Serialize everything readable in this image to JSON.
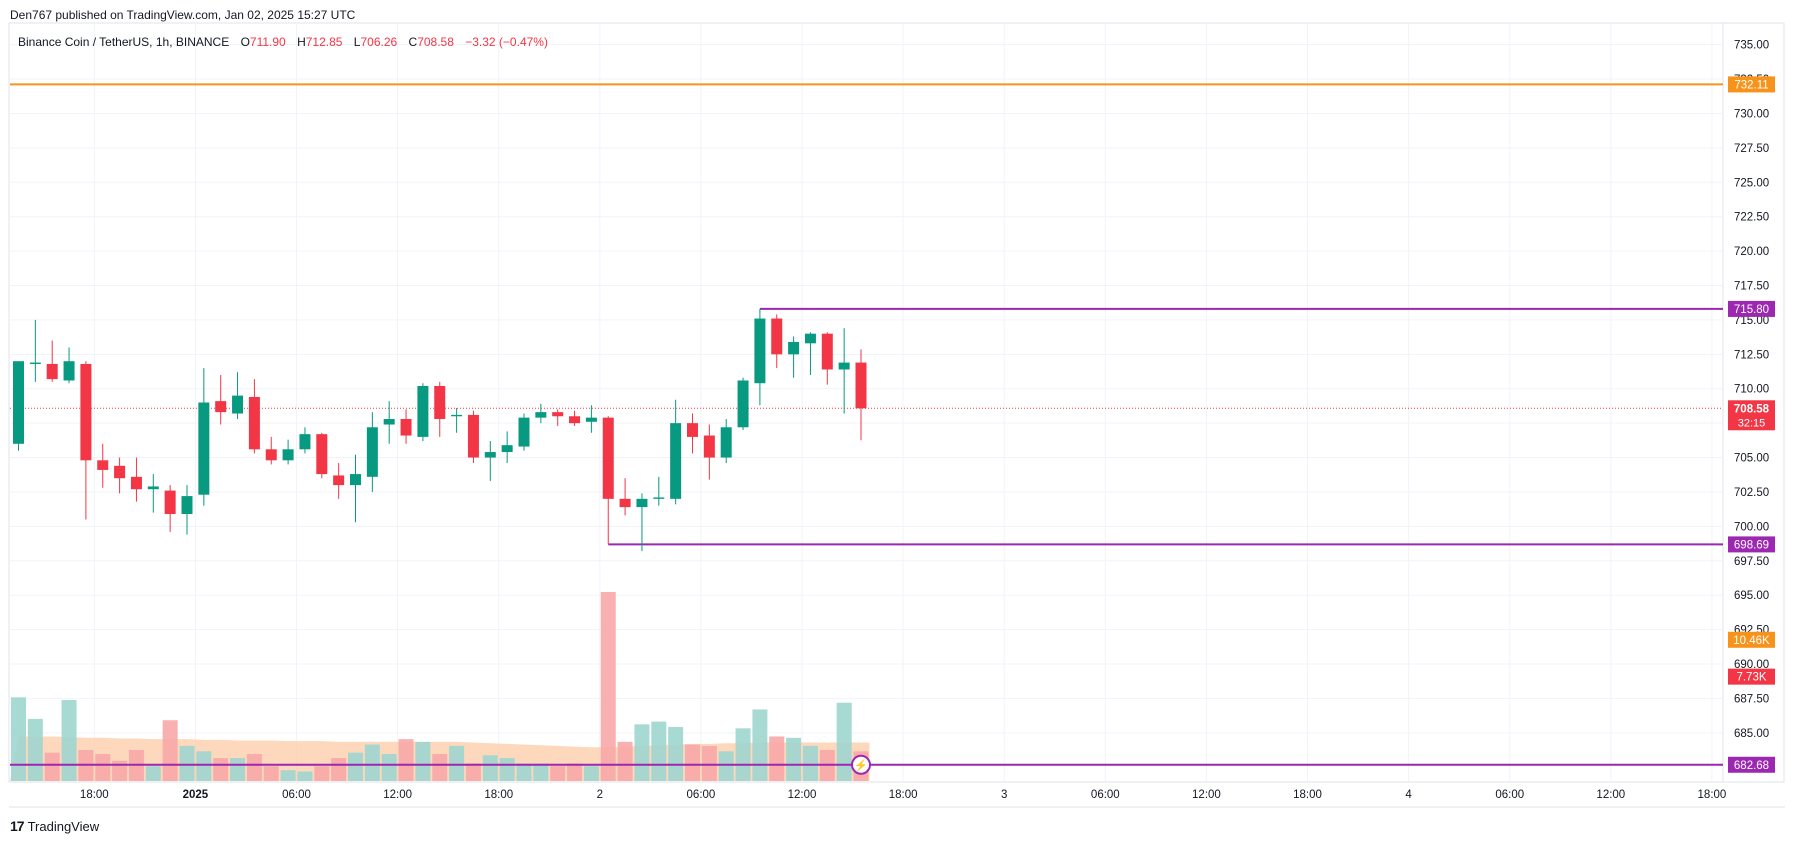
{
  "header": {
    "credit": "Den767 published on TradingView.com, Jan 02, 2025 15:27 UTC"
  },
  "legend": {
    "symbol": "Binance Coin / TetherUS, 1h, BINANCE",
    "open_label": "O",
    "open": "711.90",
    "high_label": "H",
    "high": "712.85",
    "low_label": "L",
    "low": "706.26",
    "close_label": "C",
    "close": "708.58",
    "change": "−3.32 (−0.47%)"
  },
  "footer": {
    "brand": "TradingView",
    "brand_mark": "17"
  },
  "colors": {
    "up": "#089981",
    "down": "#f23645",
    "vol_up": "#9fd6cf",
    "vol_down": "#f7a9a7",
    "orange_line": "#f7931a",
    "purple_line": "#9c27b0",
    "vol_ma_fill": "#fccba6",
    "grid": "#f0f3fa",
    "axis_text": "#131722"
  },
  "chart_data": {
    "type": "candlestick",
    "ylim": [
      681.5,
      736.5
    ],
    "y_ticks": [
      "735.00",
      "732.50",
      "730.00",
      "727.50",
      "725.00",
      "722.50",
      "720.00",
      "717.50",
      "715.00",
      "712.50",
      "710.00",
      "707.50",
      "705.00",
      "702.50",
      "700.00",
      "697.50",
      "695.00",
      "692.50",
      "690.00",
      "687.50",
      "685.00"
    ],
    "x_labels": [
      {
        "i": 4.5,
        "label": "18:00",
        "bold": false
      },
      {
        "i": 10.5,
        "label": "2025",
        "bold": true
      },
      {
        "i": 16.5,
        "label": "06:00",
        "bold": false
      },
      {
        "i": 22.5,
        "label": "12:00",
        "bold": false
      },
      {
        "i": 28.5,
        "label": "18:00",
        "bold": false
      },
      {
        "i": 34.5,
        "label": "2",
        "bold": false
      },
      {
        "i": 40.5,
        "label": "06:00",
        "bold": false
      },
      {
        "i": 46.5,
        "label": "12:00",
        "bold": false
      },
      {
        "i": 52.5,
        "label": "18:00",
        "bold": false
      },
      {
        "i": 58.5,
        "label": "3",
        "bold": false
      },
      {
        "i": 64.5,
        "label": "06:00",
        "bold": false
      },
      {
        "i": 70.5,
        "label": "12:00",
        "bold": false
      },
      {
        "i": 76.5,
        "label": "18:00",
        "bold": false
      },
      {
        "i": 82.5,
        "label": "4",
        "bold": false
      },
      {
        "i": 88.5,
        "label": "06:00",
        "bold": false
      },
      {
        "i": 94.5,
        "label": "12:00",
        "bold": false
      },
      {
        "i": 100.5,
        "label": "18:00",
        "bold": false
      }
    ],
    "candles": [
      {
        "o": 706.0,
        "h": 712.0,
        "l": 705.5,
        "c": 712.0
      },
      {
        "o": 711.8,
        "h": 715.0,
        "l": 710.5,
        "c": 711.9
      },
      {
        "o": 711.8,
        "h": 713.5,
        "l": 710.5,
        "c": 710.7
      },
      {
        "o": 710.6,
        "h": 713.0,
        "l": 710.4,
        "c": 712.0
      },
      {
        "o": 711.8,
        "h": 712.0,
        "l": 700.5,
        "c": 704.8
      },
      {
        "o": 704.8,
        "h": 706.0,
        "l": 702.8,
        "c": 704.1
      },
      {
        "o": 704.4,
        "h": 705.0,
        "l": 702.4,
        "c": 703.5
      },
      {
        "o": 703.6,
        "h": 705.0,
        "l": 701.8,
        "c": 702.7
      },
      {
        "o": 702.7,
        "h": 703.8,
        "l": 701.0,
        "c": 702.9
      },
      {
        "o": 702.6,
        "h": 703.0,
        "l": 699.6,
        "c": 700.9
      },
      {
        "o": 700.9,
        "h": 703.0,
        "l": 699.4,
        "c": 702.2
      },
      {
        "o": 702.3,
        "h": 711.5,
        "l": 701.5,
        "c": 709.0
      },
      {
        "o": 709.1,
        "h": 711.0,
        "l": 707.4,
        "c": 708.3
      },
      {
        "o": 708.2,
        "h": 711.2,
        "l": 707.8,
        "c": 709.5
      },
      {
        "o": 709.4,
        "h": 710.7,
        "l": 705.3,
        "c": 705.6
      },
      {
        "o": 705.6,
        "h": 706.5,
        "l": 704.5,
        "c": 704.8
      },
      {
        "o": 704.8,
        "h": 706.3,
        "l": 704.5,
        "c": 705.6
      },
      {
        "o": 705.6,
        "h": 707.2,
        "l": 705.3,
        "c": 706.7
      },
      {
        "o": 706.7,
        "h": 706.8,
        "l": 703.5,
        "c": 703.8
      },
      {
        "o": 703.7,
        "h": 704.6,
        "l": 702.0,
        "c": 703.0
      },
      {
        "o": 703.0,
        "h": 705.2,
        "l": 700.3,
        "c": 703.8
      },
      {
        "o": 703.6,
        "h": 708.3,
        "l": 702.5,
        "c": 707.2
      },
      {
        "o": 707.4,
        "h": 709.1,
        "l": 706.0,
        "c": 707.8
      },
      {
        "o": 707.8,
        "h": 708.5,
        "l": 706.0,
        "c": 706.6
      },
      {
        "o": 706.5,
        "h": 710.4,
        "l": 706.2,
        "c": 710.2
      },
      {
        "o": 710.2,
        "h": 710.5,
        "l": 706.5,
        "c": 707.8
      },
      {
        "o": 708.0,
        "h": 708.6,
        "l": 706.8,
        "c": 708.1
      },
      {
        "o": 708.1,
        "h": 708.4,
        "l": 704.6,
        "c": 705.0
      },
      {
        "o": 705.0,
        "h": 706.2,
        "l": 703.3,
        "c": 705.4
      },
      {
        "o": 705.4,
        "h": 706.9,
        "l": 704.6,
        "c": 705.9
      },
      {
        "o": 705.8,
        "h": 708.2,
        "l": 705.5,
        "c": 707.9
      },
      {
        "o": 707.9,
        "h": 708.9,
        "l": 707.5,
        "c": 708.3
      },
      {
        "o": 708.3,
        "h": 708.5,
        "l": 707.3,
        "c": 708.0
      },
      {
        "o": 708.0,
        "h": 708.4,
        "l": 707.3,
        "c": 707.5
      },
      {
        "o": 707.6,
        "h": 708.8,
        "l": 706.8,
        "c": 707.9
      },
      {
        "o": 707.9,
        "h": 708.0,
        "l": 698.7,
        "c": 702.0
      },
      {
        "o": 702.0,
        "h": 703.5,
        "l": 700.8,
        "c": 701.4
      },
      {
        "o": 701.4,
        "h": 702.4,
        "l": 698.2,
        "c": 702.0
      },
      {
        "o": 702.0,
        "h": 703.6,
        "l": 701.5,
        "c": 702.1
      },
      {
        "o": 702.0,
        "h": 709.2,
        "l": 701.6,
        "c": 707.5
      },
      {
        "o": 707.5,
        "h": 708.2,
        "l": 705.3,
        "c": 706.5
      },
      {
        "o": 706.6,
        "h": 707.4,
        "l": 703.4,
        "c": 705.0
      },
      {
        "o": 705.0,
        "h": 707.8,
        "l": 704.6,
        "c": 707.2
      },
      {
        "o": 707.2,
        "h": 710.8,
        "l": 707.0,
        "c": 710.6
      },
      {
        "o": 710.4,
        "h": 715.8,
        "l": 708.8,
        "c": 715.1
      },
      {
        "o": 715.1,
        "h": 715.4,
        "l": 711.5,
        "c": 712.5
      },
      {
        "o": 712.5,
        "h": 713.8,
        "l": 710.8,
        "c": 713.4
      },
      {
        "o": 713.3,
        "h": 714.1,
        "l": 711.0,
        "c": 714.0
      },
      {
        "o": 714.0,
        "h": 714.1,
        "l": 710.3,
        "c": 711.4
      },
      {
        "o": 711.4,
        "h": 714.4,
        "l": 708.2,
        "c": 711.9
      },
      {
        "o": 711.9,
        "h": 712.85,
        "l": 706.26,
        "c": 708.58
      }
    ],
    "volume": {
      "max": 14000,
      "bars": [
        6200,
        4600,
        2100,
        6000,
        2300,
        2000,
        1500,
        2300,
        1100,
        4500,
        2600,
        2200,
        1700,
        1700,
        2000,
        1100,
        800,
        700,
        1100,
        1700,
        2100,
        2700,
        2000,
        3100,
        2900,
        2000,
        2600,
        1300,
        1900,
        1700,
        1300,
        1300,
        1100,
        1300,
        1100,
        14000,
        2900,
        4200,
        4400,
        4000,
        2700,
        2600,
        2200,
        3900,
        5300,
        3300,
        3200,
        2600,
        2300,
        5800,
        2200
      ],
      "ma": [
        3300,
        3300,
        3300,
        3250,
        3200,
        3200,
        3150,
        3150,
        3100,
        3100,
        3100,
        3050,
        3050,
        3000,
        3000,
        3000,
        2950,
        2950,
        2950,
        2900,
        2900,
        2900,
        2900,
        2900,
        2900,
        2900,
        2900,
        2850,
        2800,
        2750,
        2700,
        2650,
        2600,
        2550,
        2500,
        2500,
        2550,
        2600,
        2650,
        2700,
        2750,
        2750,
        2800,
        2800,
        2850,
        2850,
        2850,
        2850,
        2850,
        2850,
        2850
      ]
    },
    "levels": [
      {
        "price": 732.11,
        "label": "732.11",
        "color": "#f7931a",
        "from": 0
      },
      {
        "price": 715.8,
        "label": "715.80",
        "color": "#9c27b0",
        "from": 44
      },
      {
        "price": 698.69,
        "label": "698.69",
        "color": "#9c27b0",
        "from": 35
      },
      {
        "price": 682.68,
        "label": "682.68",
        "color": "#9c27b0",
        "from": 0
      }
    ],
    "last_price": {
      "price": 708.58,
      "label": "708.58",
      "countdown": "32:15"
    },
    "volume_labels": [
      {
        "value": 10460,
        "label": "10.46K",
        "color": "#f7931a"
      },
      {
        "value": 7730,
        "label": "7.73K",
        "color": "#f23645"
      }
    ]
  }
}
